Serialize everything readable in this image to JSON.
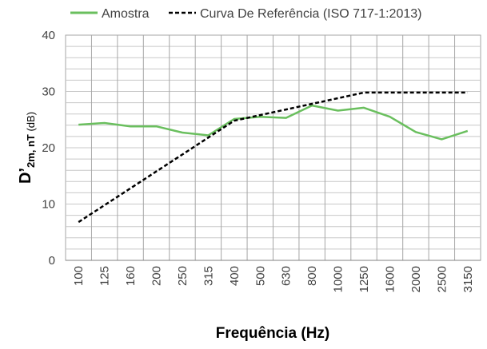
{
  "chart_data": {
    "type": "line",
    "categories": [
      "100",
      "125",
      "160",
      "200",
      "250",
      "315",
      "400",
      "500",
      "630",
      "800",
      "1000",
      "1250",
      "1600",
      "2000",
      "2500",
      "3150"
    ],
    "series": [
      {
        "name": "Amostra",
        "color": "#6abf5e",
        "style": "solid",
        "values": [
          24.1,
          24.4,
          23.8,
          23.8,
          22.7,
          22.2,
          25.1,
          25.5,
          25.3,
          27.5,
          26.6,
          27.1,
          25.5,
          22.8,
          21.5,
          23.0
        ]
      },
      {
        "name": "Curva De Referência (ISO 717-1:2013)",
        "color": "#000000",
        "style": "dashed",
        "values": [
          6.8,
          9.8,
          12.8,
          15.8,
          18.8,
          21.8,
          24.8,
          25.8,
          26.8,
          27.8,
          28.8,
          29.8,
          29.8,
          29.8,
          29.8,
          29.8
        ]
      }
    ],
    "xlabel": "Frequência (Hz)",
    "ylabel_main": "D’",
    "ylabel_sub": "2m, nT",
    "ylabel_unit": " (dB)",
    "ylim": [
      0,
      40
    ],
    "yticks": [
      0,
      10,
      20,
      30,
      40
    ],
    "grid": true,
    "legend_position": "top"
  }
}
